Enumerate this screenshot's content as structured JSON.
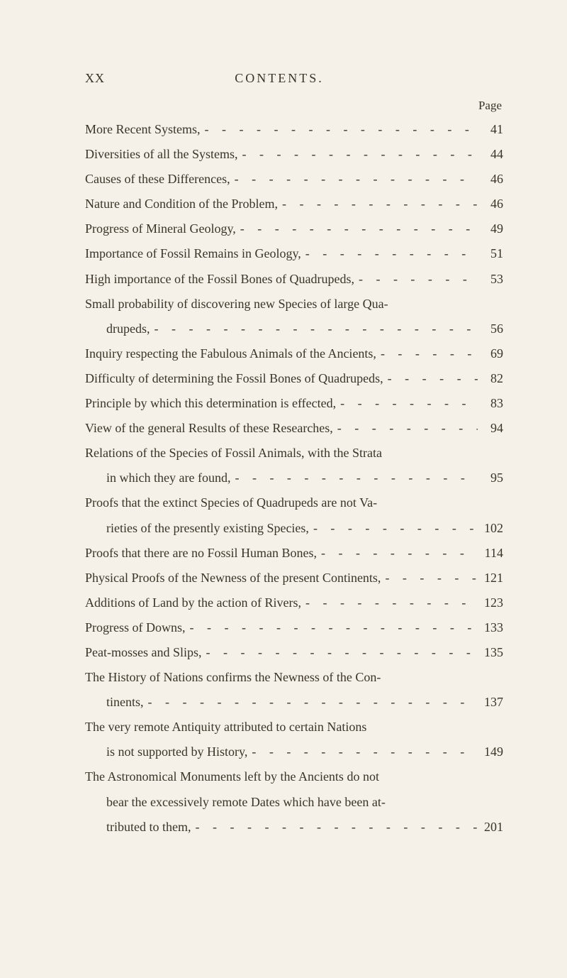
{
  "header": {
    "roman": "XX",
    "title": "CONTENTS.",
    "page_label": "Page"
  },
  "entries": [
    {
      "lines": [
        {
          "text": "More Recent Systems,",
          "page": "41"
        }
      ]
    },
    {
      "lines": [
        {
          "text": "Diversities of all the Systems,",
          "page": "44"
        }
      ]
    },
    {
      "lines": [
        {
          "text": "Causes of these Differences,",
          "page": "46"
        }
      ]
    },
    {
      "lines": [
        {
          "text": "Nature and Condition of the Problem,",
          "page": "46"
        }
      ]
    },
    {
      "lines": [
        {
          "text": "Progress of Mineral Geology,",
          "page": "49"
        }
      ]
    },
    {
      "lines": [
        {
          "text": "Importance of Fossil Remains in Geology,",
          "page": "51"
        }
      ]
    },
    {
      "lines": [
        {
          "text": "High importance of the Fossil Bones of Quadrupeds,",
          "page": "53"
        }
      ]
    },
    {
      "lines": [
        {
          "text": "Small probability of discovering new Species of large Qua-",
          "page": null
        },
        {
          "text": "drupeds,",
          "page": "56",
          "cont": true
        }
      ]
    },
    {
      "lines": [
        {
          "text": "Inquiry respecting the Fabulous Animals of the Ancients,",
          "page": "69"
        }
      ]
    },
    {
      "lines": [
        {
          "text": "Difficulty of determining the Fossil Bones of Quadrupeds,",
          "page": "82"
        }
      ]
    },
    {
      "lines": [
        {
          "text": "Principle by which this determination is effected,",
          "page": "83"
        }
      ]
    },
    {
      "lines": [
        {
          "text": "View of the general Results of these Researches,",
          "page": "94"
        }
      ]
    },
    {
      "lines": [
        {
          "text": "Relations of the Species of Fossil Animals, with the Strata",
          "page": null
        },
        {
          "text": "in which they are found,",
          "page": "95",
          "cont": true
        }
      ]
    },
    {
      "lines": [
        {
          "text": "Proofs that the extinct Species of Quadrupeds are not Va-",
          "page": null
        },
        {
          "text": "rieties of the presently existing Species,",
          "page": "102",
          "cont": true
        }
      ]
    },
    {
      "lines": [
        {
          "text": "Proofs that there are no Fossil Human Bones,",
          "page": "114"
        }
      ]
    },
    {
      "lines": [
        {
          "text": "Physical Proofs of the Newness of the present Continents,",
          "page": "121"
        }
      ]
    },
    {
      "lines": [
        {
          "text": "Additions of Land by the action of Rivers,",
          "page": "123"
        }
      ]
    },
    {
      "lines": [
        {
          "text": "Progress of Downs,",
          "page": "133"
        }
      ]
    },
    {
      "lines": [
        {
          "text": "Peat-mosses and Slips,",
          "page": "135"
        }
      ]
    },
    {
      "lines": [
        {
          "text": "The History of Nations confirms the Newness of the Con-",
          "page": null
        },
        {
          "text": "tinents,",
          "page": "137",
          "cont": true
        }
      ]
    },
    {
      "lines": [
        {
          "text": "The very remote Antiquity attributed to certain Nations",
          "page": null
        },
        {
          "text": "is not supported by History,",
          "page": "149",
          "cont": true
        }
      ]
    },
    {
      "lines": [
        {
          "text": "The Astronomical Monuments left by the Ancients do not",
          "page": null
        },
        {
          "text": "bear the excessively remote Dates which have been at-",
          "page": null,
          "cont": true
        },
        {
          "text": "tributed to them,",
          "page": "201",
          "cont": true
        }
      ]
    }
  ]
}
